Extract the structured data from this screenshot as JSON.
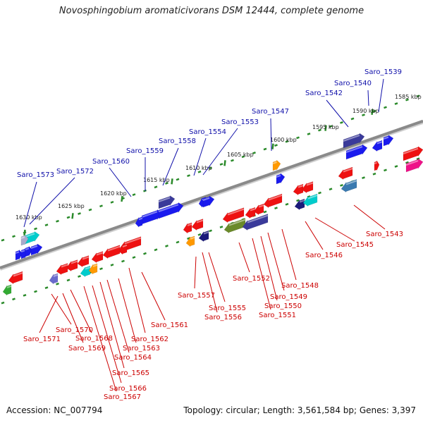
{
  "title": "Novosphingobium aromaticivorans DSM 12444, complete genome",
  "footer": {
    "accession": "Accession: NC_007794",
    "stats": "Topology: circular; Length: 3,561,584 bp; Genes: 3,397"
  },
  "colors": {
    "forward_label": "#1010aa",
    "reverse_label": "#cc0000",
    "backbone": "#8a8a8a",
    "tick_dots": "#2a8a2a"
  },
  "kbp_ticks": [
    "1585 kbp",
    "1590 kbp",
    "1595 kbp",
    "1600 kbp",
    "1605 kbp",
    "1610 kbp",
    "1615 kbp",
    "1620 kbp",
    "1625 kbp",
    "1630 kbp"
  ],
  "forward_labels": [
    "Saro_1539",
    "Saro_1540",
    "Saro_1542",
    "Saro_1547",
    "Saro_1553",
    "Saro_1554",
    "Saro_1558",
    "Saro_1559",
    "Saro_1560",
    "Saro_1572",
    "Saro_1573"
  ],
  "reverse_labels": [
    "Saro_1543",
    "Saro_1545",
    "Saro_1546",
    "Saro_1548",
    "Saro_1549",
    "Saro_1550",
    "Saro_1551",
    "Saro_1552",
    "Saro_1555",
    "Saro_1556",
    "Saro_1557",
    "Saro_1561",
    "Saro_1562",
    "Saro_1563",
    "Saro_1564",
    "Saro_1565",
    "Saro_1566",
    "Saro_1567",
    "Saro_1568",
    "Saro_1569",
    "Saro_1570",
    "Saro_1571"
  ]
}
